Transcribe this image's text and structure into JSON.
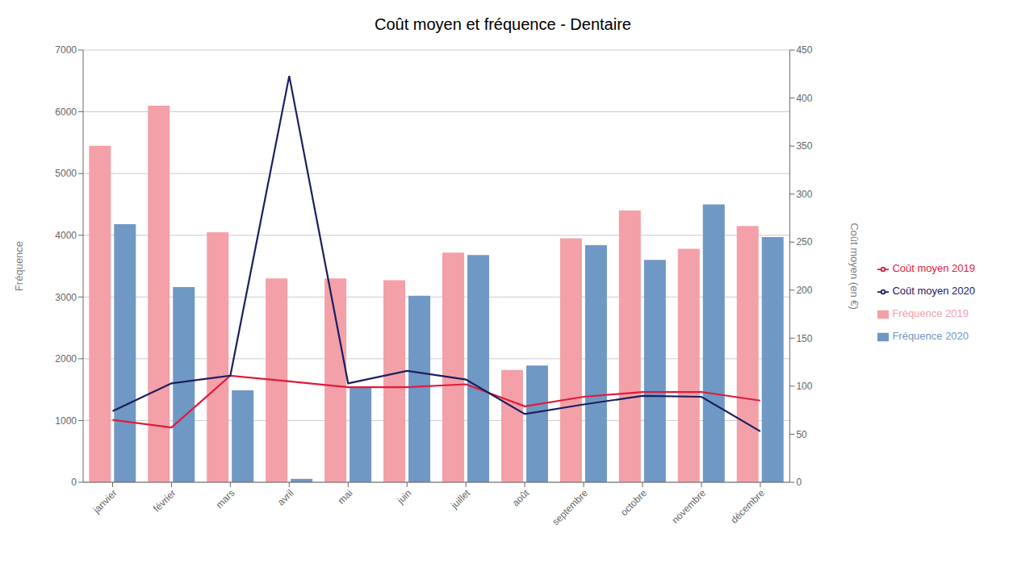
{
  "chart_data": {
    "type": "bar",
    "title": "Coût moyen et fréquence - Dentaire",
    "categories": [
      "janvier",
      "février",
      "mars",
      "avril",
      "mai",
      "juin",
      "juillet",
      "août",
      "septembre",
      "octobre",
      "novembre",
      "décembre"
    ],
    "ylabel": "Fréquence",
    "y2label": "Coût moyen (en €)",
    "ylim": [
      0,
      7000
    ],
    "yticks": [
      0,
      1000,
      2000,
      3000,
      4000,
      5000,
      6000,
      7000
    ],
    "y2lim": [
      0,
      450
    ],
    "y2ticks": [
      0,
      50,
      100,
      150,
      200,
      250,
      300,
      350,
      400,
      450
    ],
    "grid": true,
    "legend": "right",
    "series": [
      {
        "name": "Fréquence 2019",
        "type": "bar",
        "color": "#f4a0a8",
        "values": [
          5450,
          6100,
          4050,
          3300,
          3300,
          3270,
          3720,
          1820,
          3950,
          4400,
          3780,
          4150
        ]
      },
      {
        "name": "Fréquence 2020",
        "type": "bar",
        "color": "#7098c4",
        "values": [
          4180,
          3160,
          1490,
          55,
          1540,
          3020,
          3680,
          1890,
          3840,
          3600,
          4500,
          3970
        ]
      },
      {
        "name": "Coût moyen 2019",
        "type": "line",
        "axis": "y2",
        "color": "#e01a3c",
        "values": [
          65,
          57,
          111,
          105,
          99,
          99,
          102,
          79,
          89,
          94,
          94,
          85
        ]
      },
      {
        "name": "Coût moyen 2020",
        "type": "line",
        "axis": "y2",
        "color": "#1a2060",
        "values": [
          74,
          103,
          111,
          423,
          103,
          116,
          107,
          71,
          81,
          90,
          89,
          53
        ]
      }
    ]
  }
}
